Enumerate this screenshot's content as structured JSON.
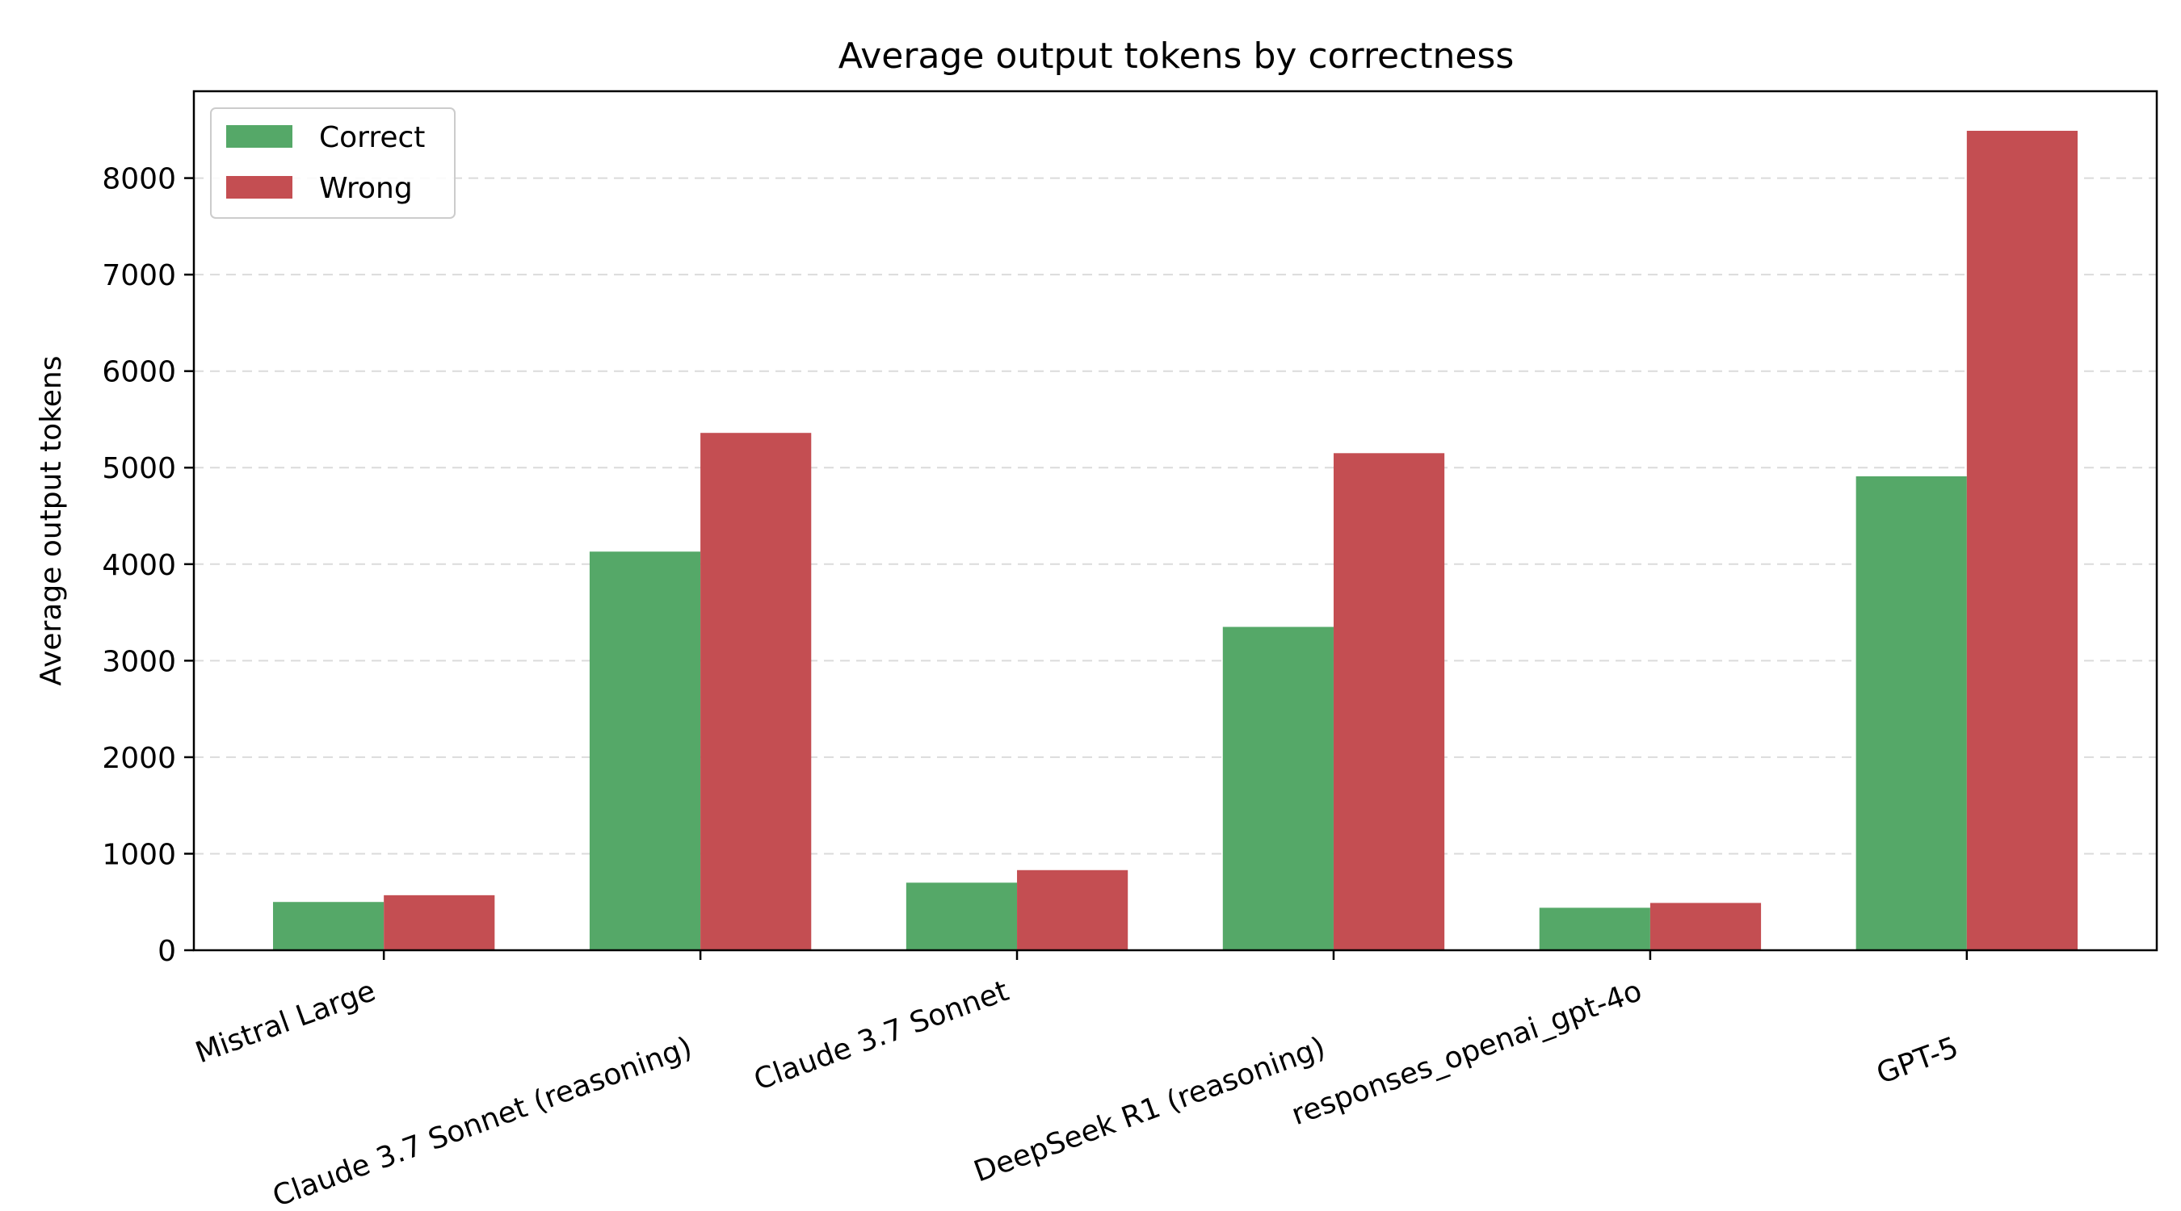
{
  "chart_data": {
    "type": "bar",
    "title": "Average output tokens by correctness",
    "xlabel": "",
    "ylabel": "Average output tokens",
    "categories": [
      "Mistral Large",
      "Claude 3.7 Sonnet (reasoning)",
      "Claude 3.7 Sonnet",
      "DeepSeek R1 (reasoning)",
      "responses_openai_gpt-4o",
      "GPT-5"
    ],
    "series": [
      {
        "name": "Correct",
        "color": "#55a868",
        "values": [
          500,
          4130,
          700,
          3350,
          440,
          4910
        ]
      },
      {
        "name": "Wrong",
        "color": "#c44e52",
        "values": [
          570,
          5360,
          830,
          5150,
          490,
          8490
        ]
      }
    ],
    "ylim": [
      0,
      8900
    ],
    "yticks": [
      0,
      1000,
      2000,
      3000,
      4000,
      5000,
      6000,
      7000,
      8000
    ],
    "grid": "y-dashed",
    "legend_position": "top-left"
  }
}
